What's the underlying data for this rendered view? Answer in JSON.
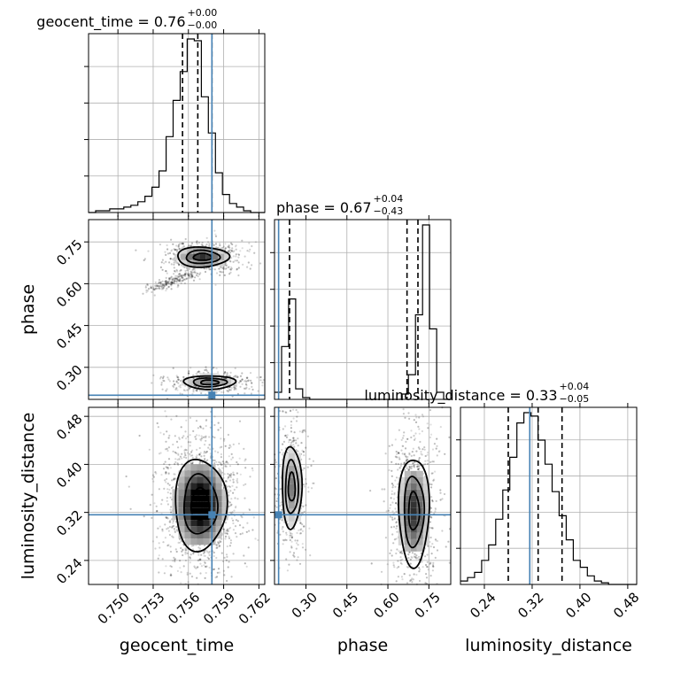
{
  "chart_data": {
    "type": "corner",
    "parameters": [
      "geocent_time",
      "phase",
      "luminosity_distance"
    ],
    "truth_color": "#4682b4",
    "truths": {
      "geocent_time": 0.758,
      "phase": 0.2,
      "luminosity_distance": 0.316
    },
    "axes": {
      "geocent_time": {
        "range": [
          0.7475,
          0.7625
        ],
        "ticks": [
          0.75,
          0.753,
          0.756,
          0.759,
          0.762
        ],
        "tick_labels": [
          "0.750",
          "0.753",
          "0.756",
          "0.759",
          "0.762"
        ],
        "label": "geocent_time"
      },
      "phase": {
        "range": [
          0.185,
          0.83
        ],
        "ticks": [
          0.3,
          0.45,
          0.6,
          0.75
        ],
        "tick_labels": [
          "0.30",
          "0.45",
          "0.60",
          "0.75"
        ],
        "label": "phase"
      },
      "luminosity_distance": {
        "range": [
          0.2,
          0.495
        ],
        "ticks": [
          0.24,
          0.32,
          0.4,
          0.48
        ],
        "tick_labels": [
          "0.24",
          "0.32",
          "0.40",
          "0.48"
        ],
        "label": "luminosity_distance"
      }
    },
    "titles": [
      {
        "main": "geocent_time = 0.76",
        "plus": "+0.00",
        "minus": "−0.00"
      },
      {
        "main": "phase = 0.67",
        "plus": "+0.04",
        "minus": "−0.43"
      },
      {
        "main": "luminosity_distance = 0.33",
        "plus": "+0.04",
        "minus": "−0.05"
      }
    ],
    "quantiles": {
      "geocent_time": [
        0.7555,
        0.7568,
        0.758
      ],
      "phase": [
        0.24,
        0.67,
        0.71
      ],
      "luminosity_distance": [
        0.28,
        0.33,
        0.37
      ]
    },
    "histograms": {
      "geocent_time": {
        "bin_start": 0.7475,
        "bin_width": 0.0006,
        "counts": [
          0,
          1,
          1,
          2,
          2,
          3,
          4,
          6,
          9,
          14,
          23,
          42,
          62,
          78,
          96,
          95,
          64,
          44,
          22,
          10,
          5,
          3,
          1,
          0,
          0
        ]
      },
      "phase": {
        "bin_start": 0.185,
        "bin_width": 0.0258,
        "counts": [
          4,
          30,
          57,
          6,
          1,
          0,
          0,
          0,
          0,
          0,
          0,
          0,
          0,
          0,
          0,
          0,
          0,
          0,
          3,
          14,
          48,
          99,
          40,
          4,
          0
        ]
      },
      "luminosity_distance": {
        "bin_start": 0.2,
        "bin_width": 0.0118,
        "counts": [
          2,
          4,
          7,
          14,
          23,
          38,
          55,
          74,
          94,
          100,
          98,
          84,
          70,
          54,
          40,
          26,
          14,
          10,
          5,
          2,
          1,
          0,
          0,
          0,
          0
        ]
      }
    },
    "grid": true,
    "legend": "none"
  }
}
